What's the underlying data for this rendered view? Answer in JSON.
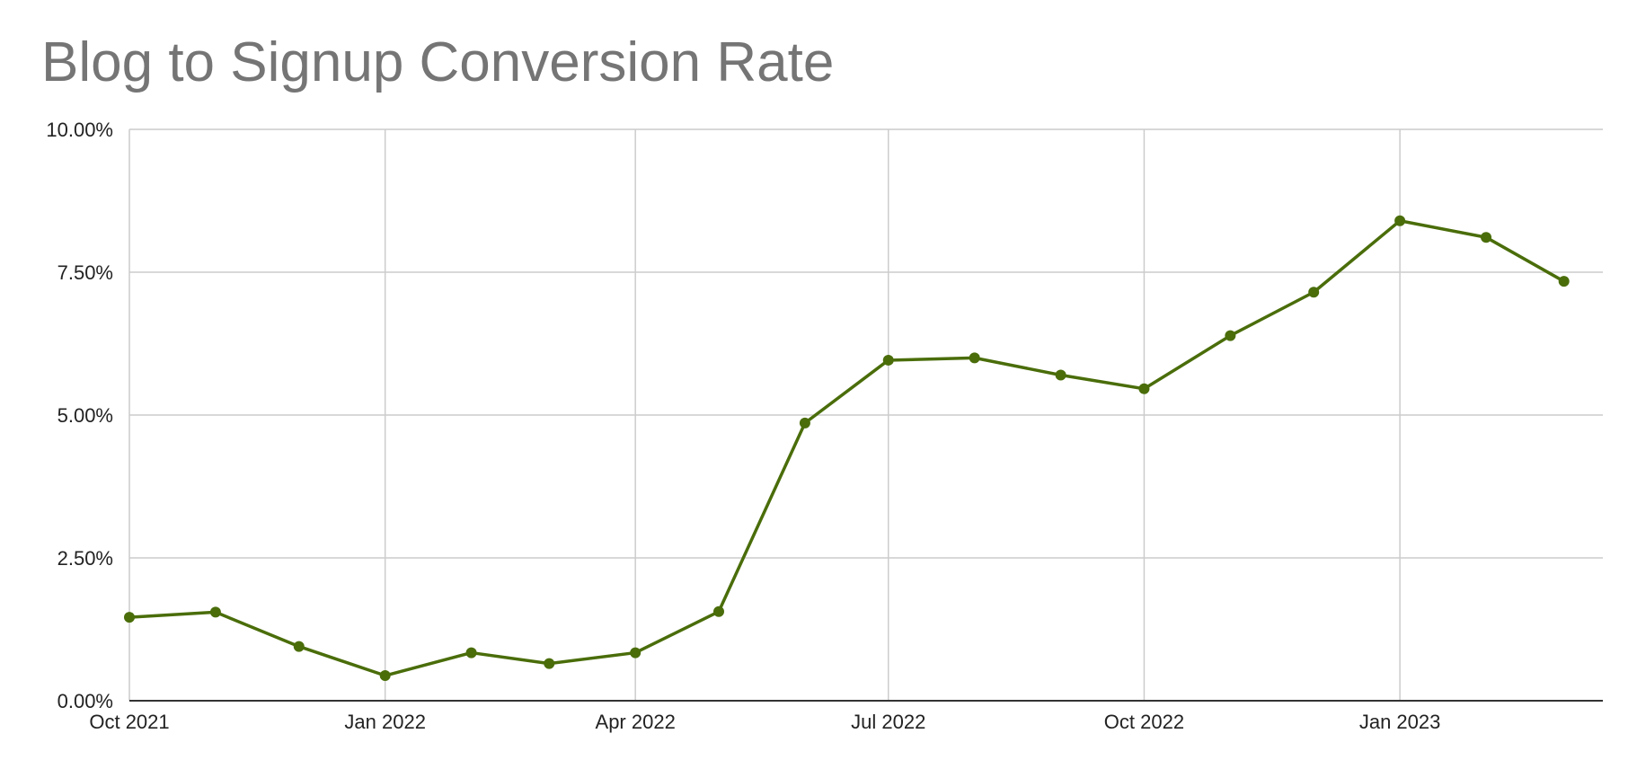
{
  "chart_data": {
    "type": "line",
    "title": "Blog to Signup Conversion Rate",
    "xlabel": "",
    "ylabel": "",
    "x_range": [
      "2021-10-01",
      "2023-03-15"
    ],
    "ylim": [
      0,
      10
    ],
    "y_unit": "%",
    "y_ticks": [
      "0.00%",
      "2.50%",
      "5.00%",
      "7.50%",
      "10.00%"
    ],
    "x_ticks": [
      {
        "date": "2021-10-01",
        "label": "Oct 2021"
      },
      {
        "date": "2022-01-01",
        "label": "Jan 2022"
      },
      {
        "date": "2022-04-01",
        "label": "Apr 2022"
      },
      {
        "date": "2022-07-01",
        "label": "Jul 2022"
      },
      {
        "date": "2022-10-01",
        "label": "Oct 2022"
      },
      {
        "date": "2023-01-01",
        "label": "Jan 2023"
      }
    ],
    "grid": true,
    "legend": "none",
    "line_color": "#4a6d0a",
    "series": [
      {
        "x": [
          "2021-10-01",
          "2021-11-01",
          "2021-12-01",
          "2022-01-01",
          "2022-02-01",
          "2022-03-01",
          "2022-04-01",
          "2022-05-01",
          "2022-06-01",
          "2022-07-01",
          "2022-08-01",
          "2022-09-01",
          "2022-10-01",
          "2022-11-01",
          "2022-12-01",
          "2023-01-01",
          "2023-02-01",
          "2023-03-01"
        ],
        "values": [
          1.46,
          1.55,
          0.95,
          0.44,
          0.84,
          0.65,
          0.84,
          1.56,
          4.86,
          5.96,
          6.0,
          5.7,
          5.46,
          6.39,
          7.15,
          8.4,
          8.11,
          7.34
        ]
      }
    ]
  }
}
